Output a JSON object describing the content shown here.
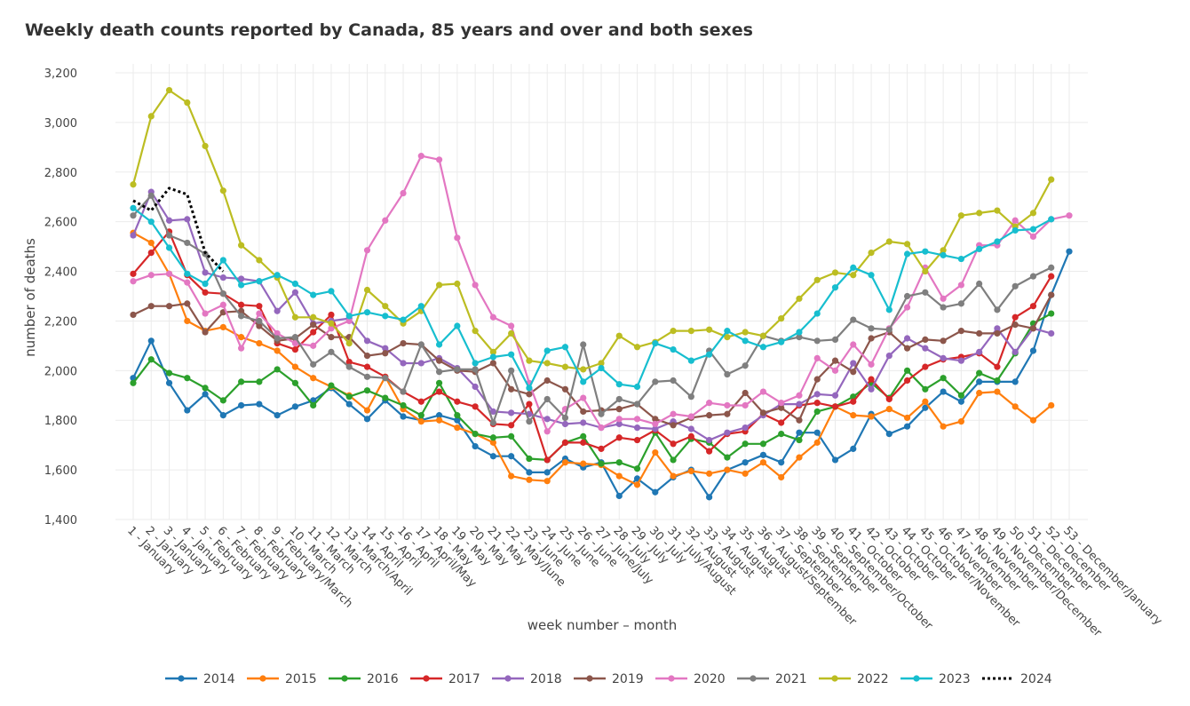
{
  "chart_data": {
    "type": "line",
    "title": "Weekly death counts reported by Canada, 85 years and over and both sexes",
    "x_label": "week number – month",
    "y_label": "number of deaths",
    "grid": true,
    "legend": "bottom",
    "ylim": [
      1400,
      3200
    ],
    "yticks": [
      {
        "value": 1400,
        "label": "1,400"
      },
      {
        "value": 1600,
        "label": "1,600"
      },
      {
        "value": 1800,
        "label": "1,800"
      },
      {
        "value": 2000,
        "label": "2,000"
      },
      {
        "value": 2200,
        "label": "2,200"
      },
      {
        "value": 2400,
        "label": "2,400"
      },
      {
        "value": 2600,
        "label": "2,600"
      },
      {
        "value": 2800,
        "label": "2,800"
      },
      {
        "value": 3000,
        "label": "3,000"
      },
      {
        "value": 3200,
        "label": "3,200"
      }
    ],
    "categories": [
      "1 - January",
      "2 - January",
      "3 - January",
      "4 - January",
      "5 - February",
      "6 - February",
      "7 - February",
      "8 - February",
      "9 - February/March",
      "10 - March",
      "11 - March",
      "12 - March",
      "13 - March/April",
      "14 - April",
      "15 - April",
      "16 - April",
      "17 - April/May",
      "18 - May",
      "19 - May",
      "20 - May",
      "21 - May",
      "22 - May/June",
      "23 - June",
      "24 - June",
      "25 - June",
      "26 - June",
      "27 - June/July",
      "28 - July",
      "29 - July",
      "30 - July",
      "31 - July/August",
      "32 - August",
      "33 - August",
      "34 - August",
      "35 - August",
      "36 - August/September",
      "37 - September",
      "38 - September",
      "39 - September",
      "40 - September/October",
      "41 - October",
      "42 - October",
      "43 - October",
      "44 - October",
      "45 - October/November",
      "46 - November",
      "47 - November",
      "48 - November",
      "49 - November/December",
      "50 - December",
      "51 - December",
      "52 - December",
      "53 - December/January"
    ],
    "series": [
      {
        "name": "2014",
        "color": "#1f77b4",
        "values": [
          1970,
          2120,
          1950,
          1840,
          1905,
          1820,
          1860,
          1865,
          1820,
          1855,
          1880,
          1930,
          1865,
          1805,
          1880,
          1815,
          1800,
          1820,
          1800,
          1695,
          1655,
          1655,
          1590,
          1590,
          1645,
          1610,
          1630,
          1495,
          1565,
          1510,
          1570,
          1600,
          1490,
          1600,
          1630,
          1660,
          1630,
          1750,
          1750,
          1640,
          1685,
          1825,
          1745,
          1775,
          1850,
          1915,
          1875,
          1955,
          1955,
          1955,
          2080,
          2305,
          2480
        ]
      },
      {
        "name": "2015",
        "color": "#ff7f0e",
        "values": [
          2555,
          2515,
          2390,
          2200,
          2160,
          2175,
          2135,
          2110,
          2080,
          2015,
          1970,
          1935,
          1900,
          1840,
          1975,
          1845,
          1795,
          1800,
          1770,
          1745,
          1710,
          1575,
          1560,
          1555,
          1630,
          1625,
          1620,
          1575,
          1540,
          1670,
          1575,
          1595,
          1585,
          1600,
          1585,
          1630,
          1570,
          1650,
          1710,
          1855,
          1820,
          1815,
          1845,
          1810,
          1875,
          1775,
          1795,
          1910,
          1915,
          1855,
          1800,
          1860,
          null
        ]
      },
      {
        "name": "2016",
        "color": "#2ca02c",
        "values": [
          1950,
          2045,
          1990,
          1970,
          1930,
          1880,
          1955,
          1955,
          2005,
          1950,
          1860,
          1940,
          1895,
          1920,
          1890,
          1860,
          1820,
          1950,
          1820,
          1745,
          1730,
          1735,
          1645,
          1640,
          1710,
          1735,
          1625,
          1630,
          1605,
          1750,
          1640,
          1725,
          1710,
          1650,
          1705,
          1705,
          1745,
          1720,
          1835,
          1855,
          1895,
          1950,
          1890,
          2000,
          1925,
          1970,
          1900,
          1990,
          1960,
          2070,
          2190,
          2230,
          null
        ]
      },
      {
        "name": "2017",
        "color": "#d62728",
        "values": [
          2390,
          2475,
          2560,
          2385,
          2315,
          2310,
          2265,
          2260,
          2110,
          2085,
          2155,
          2225,
          2035,
          2015,
          1975,
          1915,
          1875,
          1915,
          1875,
          1855,
          1785,
          1780,
          1865,
          1640,
          1710,
          1710,
          1685,
          1730,
          1720,
          1760,
          1705,
          1735,
          1675,
          1745,
          1755,
          1825,
          1790,
          1860,
          1870,
          1855,
          1875,
          1965,
          1885,
          1960,
          2015,
          2045,
          2055,
          2070,
          2015,
          2215,
          2260,
          2380,
          null
        ]
      },
      {
        "name": "2018",
        "color": "#9467bd",
        "values": [
          2545,
          2720,
          2605,
          2610,
          2395,
          2375,
          2370,
          2360,
          2240,
          2315,
          2190,
          2200,
          2210,
          2120,
          2090,
          2030,
          2030,
          2050,
          2010,
          1935,
          1835,
          1830,
          1825,
          1805,
          1785,
          1790,
          1770,
          1785,
          1770,
          1765,
          1795,
          1765,
          1720,
          1750,
          1770,
          1820,
          1865,
          1865,
          1905,
          1900,
          2030,
          1925,
          2060,
          2130,
          2090,
          2050,
          2040,
          2075,
          2170,
          2075,
          2170,
          2150,
          null
        ]
      },
      {
        "name": "2019",
        "color": "#8c564b",
        "values": [
          2225,
          2260,
          2260,
          2270,
          2155,
          2235,
          2240,
          2180,
          2120,
          2130,
          2185,
          2135,
          2135,
          2060,
          2070,
          2110,
          2105,
          2040,
          2000,
          1995,
          2030,
          1925,
          1905,
          1960,
          1925,
          1835,
          1840,
          1845,
          1865,
          1805,
          1780,
          1810,
          1820,
          1825,
          1910,
          1830,
          1850,
          1800,
          1965,
          2040,
          1995,
          2130,
          2155,
          2090,
          2125,
          2120,
          2160,
          2150,
          2150,
          2185,
          2170,
          2305,
          null
        ]
      },
      {
        "name": "2020",
        "color": "#e377c2",
        "values": [
          2360,
          2385,
          2390,
          2355,
          2230,
          2265,
          2090,
          2230,
          2150,
          2110,
          2100,
          2170,
          2200,
          2485,
          2605,
          2715,
          2865,
          2850,
          2535,
          2345,
          2215,
          2180,
          1950,
          1755,
          1845,
          1890,
          1770,
          1805,
          1805,
          1785,
          1825,
          1815,
          1870,
          1860,
          1860,
          1915,
          1870,
          1900,
          2050,
          2000,
          2105,
          2025,
          2170,
          2255,
          2415,
          2290,
          2345,
          2505,
          2505,
          2605,
          2540,
          2610,
          2625
        ]
      },
      {
        "name": "2021",
        "color": "#7f7f7f",
        "values": [
          2625,
          2705,
          2545,
          2515,
          2470,
          2310,
          2220,
          2200,
          2130,
          2135,
          2025,
          2075,
          2015,
          1975,
          1970,
          1915,
          2105,
          1995,
          2005,
          2005,
          1790,
          2000,
          1795,
          1885,
          1810,
          2105,
          1825,
          1885,
          1865,
          1955,
          1960,
          1895,
          2080,
          1985,
          2020,
          2140,
          2120,
          2135,
          2120,
          2125,
          2205,
          2170,
          2165,
          2300,
          2315,
          2255,
          2270,
          2350,
          2245,
          2340,
          2380,
          2415,
          null
        ]
      },
      {
        "name": "2022",
        "color": "#bcbd22",
        "values": [
          2750,
          3025,
          3130,
          3080,
          2905,
          2725,
          2505,
          2445,
          2375,
          2215,
          2215,
          2190,
          2110,
          2325,
          2260,
          2190,
          2240,
          2345,
          2350,
          2160,
          2075,
          2150,
          2040,
          2030,
          2015,
          2005,
          2030,
          2140,
          2095,
          2115,
          2160,
          2160,
          2165,
          2135,
          2155,
          2140,
          2210,
          2290,
          2365,
          2395,
          2385,
          2475,
          2520,
          2510,
          2400,
          2485,
          2625,
          2635,
          2645,
          2580,
          2635,
          2770,
          null
        ]
      },
      {
        "name": "2023",
        "color": "#17becf",
        "values": [
          2655,
          2600,
          2495,
          2390,
          2350,
          2445,
          2345,
          2360,
          2385,
          2350,
          2305,
          2320,
          2220,
          2235,
          2220,
          2205,
          2260,
          2105,
          2180,
          2030,
          2055,
          2065,
          1930,
          2080,
          2095,
          1955,
          2010,
          1945,
          1935,
          2110,
          2085,
          2040,
          2065,
          2160,
          2120,
          2095,
          2115,
          2155,
          2230,
          2335,
          2415,
          2385,
          2245,
          2470,
          2480,
          2465,
          2450,
          2490,
          2520,
          2565,
          2570,
          2610,
          null
        ]
      },
      {
        "name": "2024",
        "color": "#000000",
        "line_style": "dotted",
        "values": [
          2685,
          2645,
          2735,
          2710,
          2475,
          2400,
          null,
          null,
          null,
          null,
          null,
          null,
          null,
          null,
          null,
          null,
          null,
          null,
          null,
          null,
          null,
          null,
          null,
          null,
          null,
          null,
          null,
          null,
          null,
          null,
          null,
          null,
          null,
          null,
          null,
          null,
          null,
          null,
          null,
          null,
          null,
          null,
          null,
          null,
          null,
          null,
          null,
          null,
          null,
          null,
          null,
          null,
          null
        ]
      }
    ]
  }
}
